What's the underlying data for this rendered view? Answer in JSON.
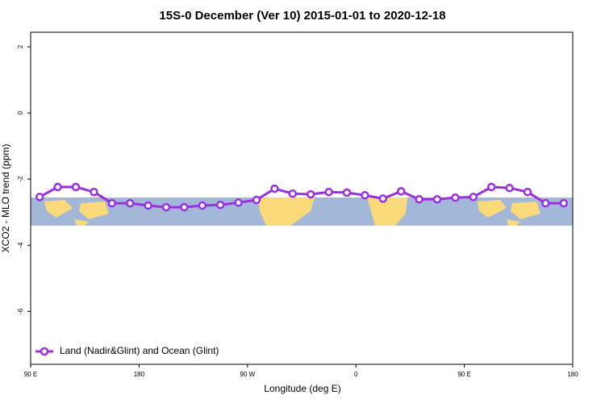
{
  "chart_data": {
    "type": "line",
    "title": "15S-0 December (Ver 10)   2015-01-01 to 2020-12-18",
    "x_label": "Longitude (deg E)",
    "y_label": "XCO2 - MLO trend (ppm)",
    "x": [
      97.5,
      112.5,
      127.5,
      142.5,
      157.5,
      172.5,
      187.5,
      202.5,
      217.5,
      232.5,
      247.5,
      262.5,
      277.5,
      292.5,
      307.5,
      322.5,
      337.5,
      352.5,
      367.5,
      382.5,
      397.5,
      412.5,
      427.5,
      442.5,
      457.5,
      472.5,
      487.5,
      502.5,
      517.5,
      532.5
    ],
    "series": [
      {
        "name": "Land (Nadir&Glint) and Ocean (Glint)",
        "color": "#9b30e0",
        "values": [
          -2.54,
          -2.24,
          -2.24,
          -2.39,
          -2.73,
          -2.73,
          -2.8,
          -2.85,
          -2.85,
          -2.8,
          -2.78,
          -2.71,
          -2.63,
          -2.29,
          -2.44,
          -2.46,
          -2.39,
          -2.41,
          -2.49,
          -2.59,
          -2.37,
          -2.61,
          -2.61,
          -2.56,
          -2.54,
          -2.24,
          -2.27,
          -2.39,
          -2.73,
          -2.73
        ]
      }
    ],
    "xlim": [
      90,
      540
    ],
    "xticks": [
      {
        "value": 90,
        "label": "90 E"
      },
      180,
      {
        "value": 270,
        "label": "90 W"
      },
      {
        "value": 360,
        "label": "0"
      },
      {
        "value": 450,
        "label": "90 E"
      },
      {
        "value": 540,
        "label": "180"
      }
    ],
    "ylim": [
      -7.6,
      2.44
    ],
    "yticks": [
      2,
      0,
      -2,
      -4,
      -6
    ],
    "legend": "bottom-left"
  }
}
